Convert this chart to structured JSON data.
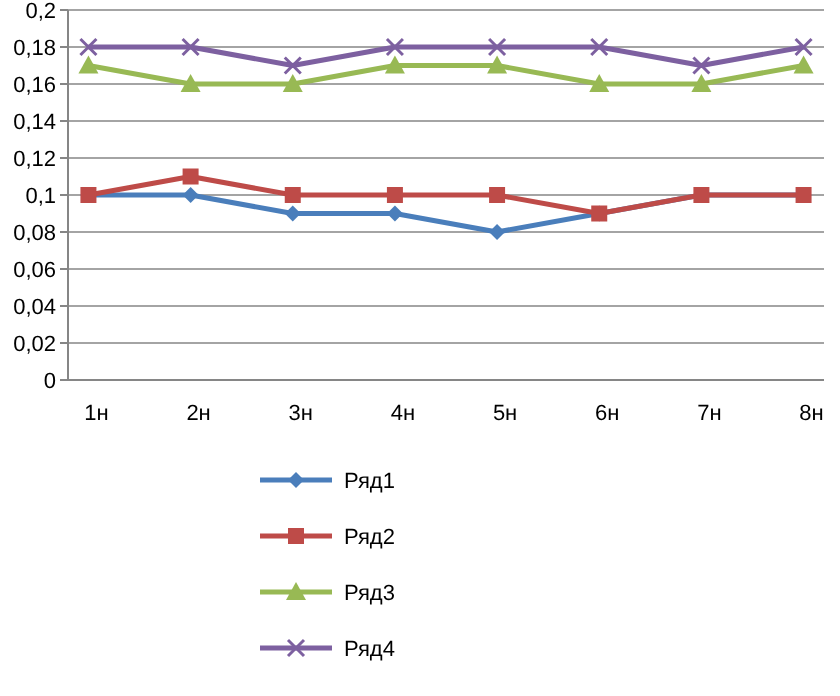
{
  "chart_data": {
    "type": "line",
    "categories": [
      "1н",
      "2н",
      "3н",
      "4н",
      "5н",
      "6н",
      "7н",
      "8н"
    ],
    "series": [
      {
        "name": "Ряд1",
        "color": "#4a7ebb",
        "marker": "diamond",
        "values": [
          0.1,
          0.1,
          0.09,
          0.09,
          0.08,
          0.09,
          0.1,
          0.1
        ]
      },
      {
        "name": "Ряд2",
        "color": "#be4b48",
        "marker": "square",
        "values": [
          0.1,
          0.11,
          0.1,
          0.1,
          0.1,
          0.09,
          0.1,
          0.1
        ]
      },
      {
        "name": "Ряд3",
        "color": "#98b954",
        "marker": "triangle",
        "values": [
          0.17,
          0.16,
          0.16,
          0.17,
          0.17,
          0.16,
          0.16,
          0.17
        ]
      },
      {
        "name": "Ряд4",
        "color": "#7d60a0",
        "marker": "cross",
        "values": [
          0.18,
          0.18,
          0.17,
          0.18,
          0.18,
          0.18,
          0.17,
          0.18
        ]
      }
    ],
    "ylim": [
      0,
      0.2
    ],
    "yticks": [
      0,
      {
        "value": 0.02,
        "label": "0,02"
      },
      {
        "value": 0.04,
        "label": "0,04"
      },
      {
        "value": 0.06,
        "label": "0,06"
      },
      {
        "value": 0.08,
        "label": "0,08"
      },
      {
        "value": 0.1,
        "label": "0,1"
      },
      {
        "value": 0.12,
        "label": "0,12"
      },
      {
        "value": 0.14,
        "label": "0,14"
      },
      {
        "value": 0.16,
        "label": "0,16"
      },
      {
        "value": 0.18,
        "label": "0,18"
      },
      {
        "value": 0.2,
        "label": "0,2"
      }
    ],
    "grid": "y",
    "legend": "bottom",
    "line_style": "solid"
  }
}
